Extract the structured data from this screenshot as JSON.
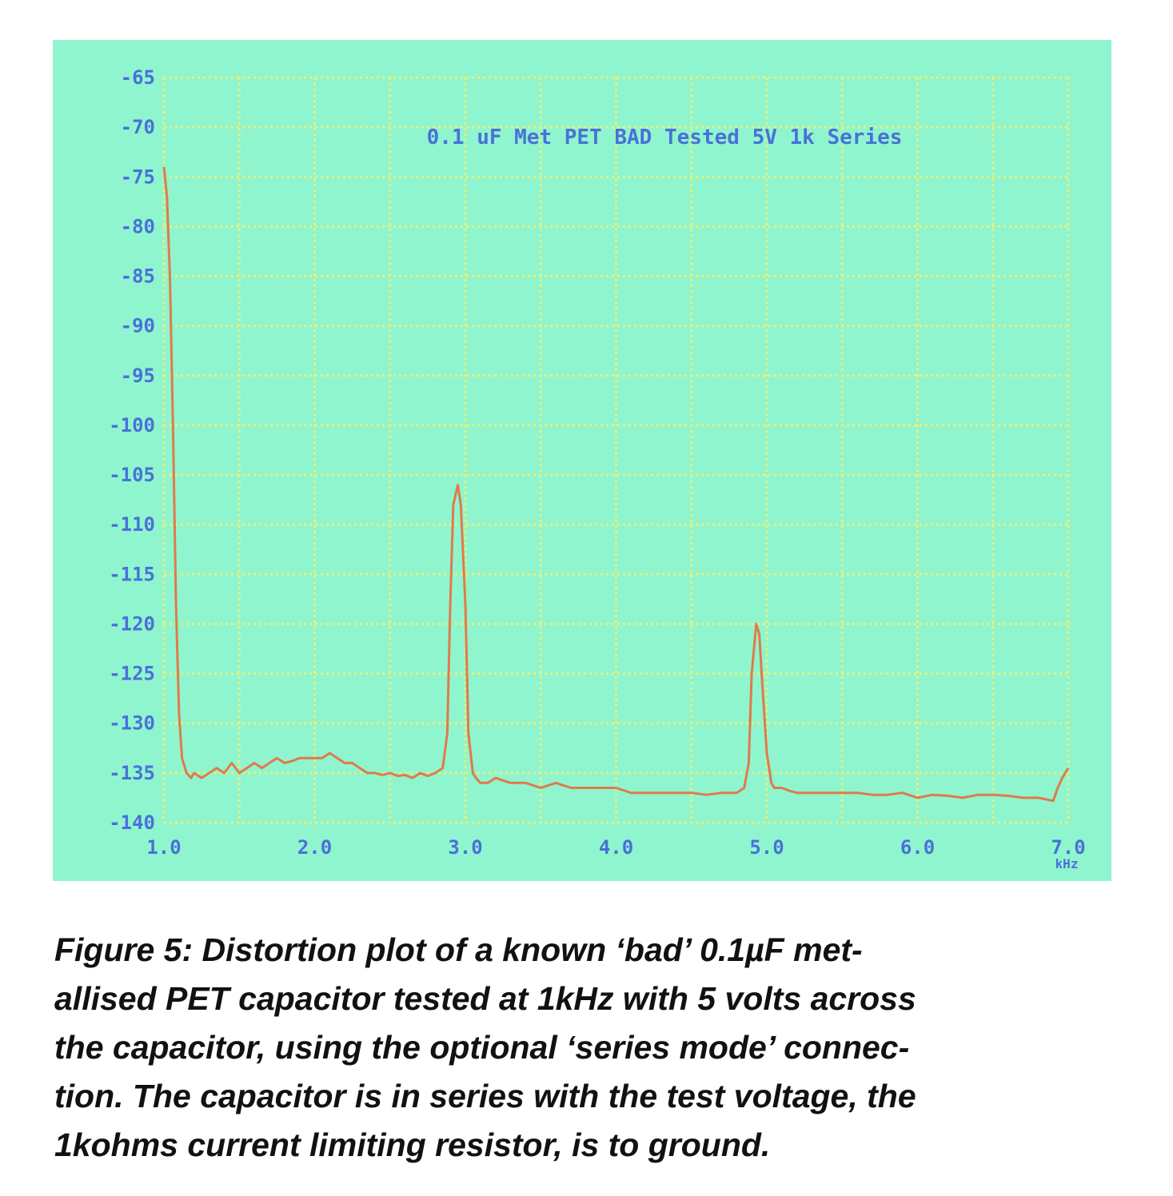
{
  "chart_data": {
    "type": "line",
    "title": "0.1 uF Met PET BAD Tested 5V 1k Series",
    "xlabel": "",
    "x_unit_label": "kHz",
    "ylabel": "",
    "xlim": [
      1.0,
      7.0
    ],
    "ylim": [
      -140,
      -65
    ],
    "x_ticks": [
      "1.0",
      "2.0",
      "3.0",
      "4.0",
      "5.0",
      "6.0",
      "7.0"
    ],
    "x_tick_values": [
      1,
      2,
      3,
      4,
      5,
      6,
      7
    ],
    "y_ticks": [
      "-65",
      "-70",
      "-75",
      "-80",
      "-85",
      "-90",
      "-95",
      "-100",
      "-105",
      "-110",
      "-115",
      "-120",
      "-125",
      "-130",
      "-135",
      "-140"
    ],
    "y_tick_values": [
      -65,
      -70,
      -75,
      -80,
      -85,
      -90,
      -95,
      -100,
      -105,
      -110,
      -115,
      -120,
      -125,
      -130,
      -135,
      -140
    ],
    "grid": true,
    "legend": "none",
    "series": [
      {
        "x": [
          1.0,
          1.02,
          1.04,
          1.06,
          1.08,
          1.1,
          1.12,
          1.15,
          1.18,
          1.2,
          1.25,
          1.3,
          1.35,
          1.4,
          1.45,
          1.5,
          1.55,
          1.6,
          1.65,
          1.7,
          1.75,
          1.8,
          1.85,
          1.9,
          1.95,
          2.0,
          2.05,
          2.1,
          2.15,
          2.2,
          2.25,
          2.3,
          2.35,
          2.4,
          2.45,
          2.5,
          2.55,
          2.6,
          2.65,
          2.7,
          2.75,
          2.8,
          2.85,
          2.88,
          2.9,
          2.92,
          2.95,
          2.97,
          3.0,
          3.02,
          3.05,
          3.07,
          3.1,
          3.15,
          3.2,
          3.3,
          3.4,
          3.5,
          3.6,
          3.7,
          3.8,
          3.9,
          4.0,
          4.1,
          4.2,
          4.3,
          4.4,
          4.5,
          4.6,
          4.7,
          4.8,
          4.85,
          4.88,
          4.9,
          4.93,
          4.95,
          4.97,
          5.0,
          5.03,
          5.05,
          5.08,
          5.1,
          5.15,
          5.2,
          5.3,
          5.4,
          5.5,
          5.6,
          5.7,
          5.8,
          5.9,
          6.0,
          6.1,
          6.2,
          6.3,
          6.4,
          6.5,
          6.6,
          6.7,
          6.8,
          6.9,
          6.93,
          6.96,
          6.98,
          7.0
        ],
        "y": [
          -74,
          -77,
          -85,
          -100,
          -118,
          -129,
          -133.5,
          -135,
          -135.5,
          -135,
          -135.5,
          -135,
          -134.5,
          -135,
          -134,
          -135,
          -134.5,
          -134,
          -134.5,
          -134,
          -133.5,
          -134,
          -133.8,
          -133.5,
          -133.5,
          -133.5,
          -133.5,
          -133,
          -133.5,
          -134,
          -134,
          -134.5,
          -135,
          -135,
          -135.2,
          -135,
          -135.3,
          -135.2,
          -135.5,
          -135,
          -135.3,
          -135,
          -134.5,
          -131,
          -118,
          -108,
          -106,
          -108,
          -118,
          -131,
          -135,
          -135.5,
          -136,
          -136,
          -135.5,
          -136,
          -136,
          -136.5,
          -136,
          -136.5,
          -136.5,
          -136.5,
          -136.5,
          -137,
          -137,
          -137,
          -137,
          -137,
          -137.2,
          -137,
          -137,
          -136.5,
          -134,
          -125,
          -120,
          -121,
          -126,
          -133,
          -136,
          -136.5,
          -136.5,
          -136.5,
          -136.8,
          -137,
          -137,
          -137,
          -137,
          -137,
          -137.2,
          -137.2,
          -137,
          -137.5,
          -137.2,
          -137.3,
          -137.5,
          -137.2,
          -137.2,
          -137.3,
          -137.5,
          -137.5,
          -137.8,
          -136.5,
          -135.5,
          -135,
          -134.5
        ]
      }
    ]
  },
  "caption": {
    "lines": [
      "Figure 5: Distortion plot of a known ‘bad’ 0.1µF met-",
      "allised PET capacitor tested at 1kHz with 5 volts across",
      "the capacitor, using the optional ‘series mode’ connec-",
      "tion. The capacitor is in series with the test voltage, the",
      "1kohms current limiting resistor, is to ground."
    ]
  },
  "colors": {
    "panel_background": "#8ff5cf",
    "grid": "#e9ef78",
    "trace": "#e07a4a",
    "title_text": "#4a70d8",
    "axis_text": "#4a70d8"
  }
}
